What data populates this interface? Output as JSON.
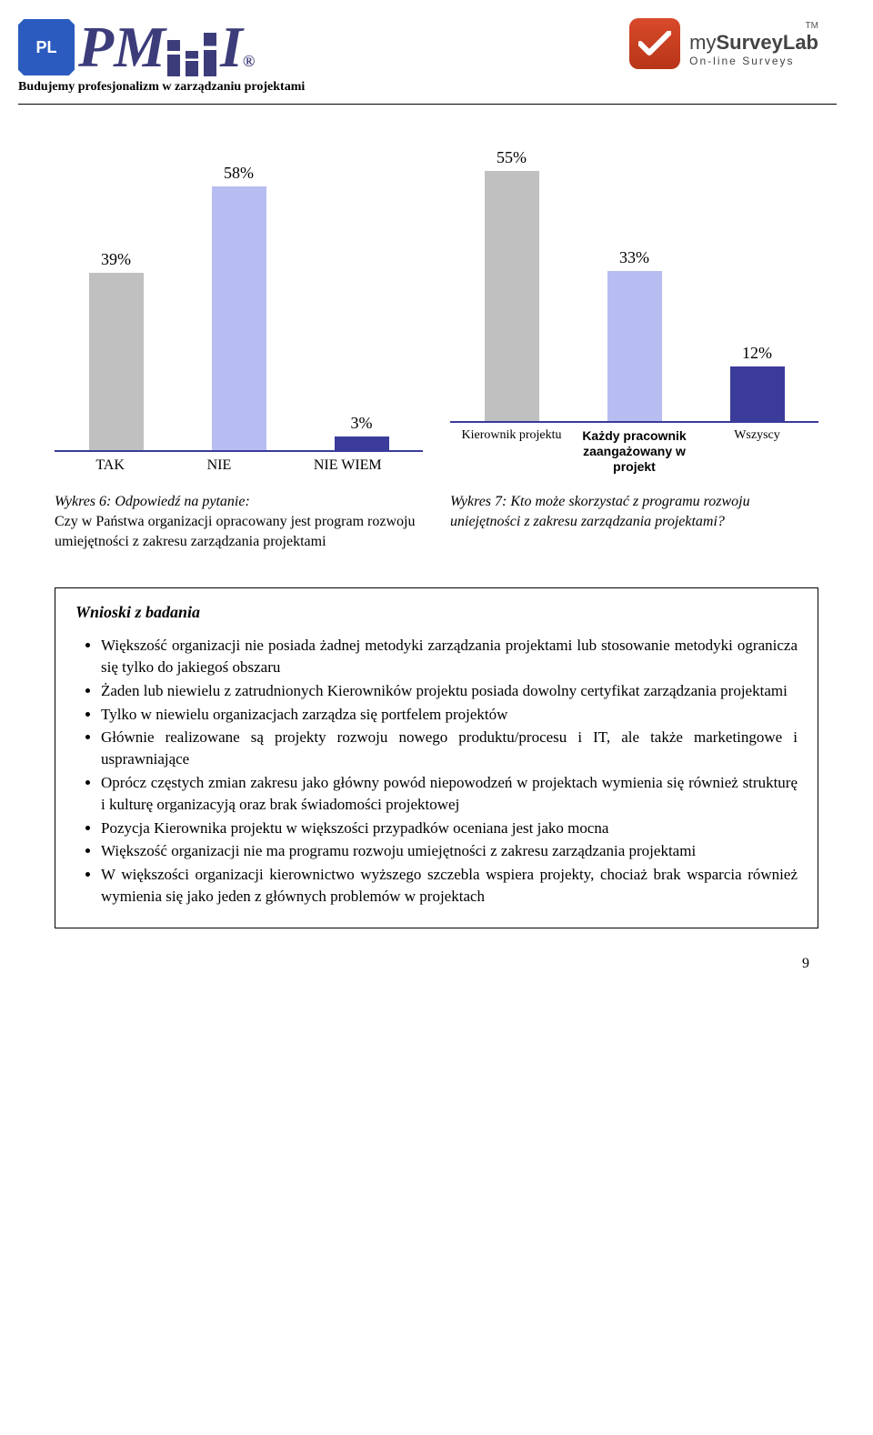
{
  "header": {
    "pl_badge": "PL",
    "tagline": "Budujemy profesjonalizm w zarządzaniu projektami",
    "msl_name_my": "my",
    "msl_name_rest": "SurveyLab",
    "msl_sub": "On-line Surveys",
    "msl_tm": "TM"
  },
  "chart_left": {
    "type": "bar",
    "max": 60,
    "bars": [
      {
        "label": "TAK",
        "value": 39,
        "display": "39%",
        "color": "#c0c0c0"
      },
      {
        "label": "NIE",
        "value": 58,
        "display": "58%",
        "color": "#b7bdf0"
      },
      {
        "label": "NIE WIEM",
        "value": 3,
        "display": "3%",
        "color": "#3b3b99"
      }
    ],
    "caption_title": "Wykres 6: Odpowiedź na pytanie:",
    "caption_body": "Czy w Państwa organizacji opracowany jest program rozwoju umiejętności z zakresu zarządzania projektami"
  },
  "chart_right": {
    "type": "bar",
    "max": 60,
    "bars": [
      {
        "label": "Kierownik projektu",
        "value": 55,
        "display": "55%",
        "color": "#c0c0c0",
        "bold": false
      },
      {
        "label": "Każdy pracownik zaangażowany w projekt",
        "value": 33,
        "display": "33%",
        "color": "#b7bdf0",
        "bold": true
      },
      {
        "label": "Wszyscy",
        "value": 12,
        "display": "12%",
        "color": "#3b3b99",
        "bold": false
      }
    ],
    "caption_title": "Wykres 7: Kto może skorzystać z programu rozwoju uniejętności z zakresu zarządzania projektami?",
    "caption_body": ""
  },
  "box": {
    "title": "Wnioski z badania",
    "items": [
      "Większość organizacji nie posiada żadnej metodyki zarządzania projektami lub stosowanie metodyki ogranicza się tylko do jakiegoś obszaru",
      "Żaden lub niewielu z zatrudnionych Kierowników projektu posiada dowolny certyfikat zarządzania projektami",
      "Tylko w niewielu organizacjach zarządza się portfelem projektów",
      "Głównie realizowane są projekty rozwoju nowego produktu/procesu i IT, ale także marketingowe i usprawniające",
      "Oprócz częstych zmian zakresu jako główny powód niepowodzeń w projektach wymienia się również strukturę i kulturę organizacyją oraz brak świadomości projektowej",
      "Pozycja Kierownika projektu w większości przypadków oceniana jest jako mocna",
      "Większość organizacji nie ma programu rozwoju umiejętności z zakresu zarządzania projektami",
      "W większości organizacji kierownictwo wyższego szczebla wspiera projekty, chociaż brak wsparcia również wymienia się jako jeden z głównych problemów w projektach"
    ]
  },
  "page_number": "9"
}
